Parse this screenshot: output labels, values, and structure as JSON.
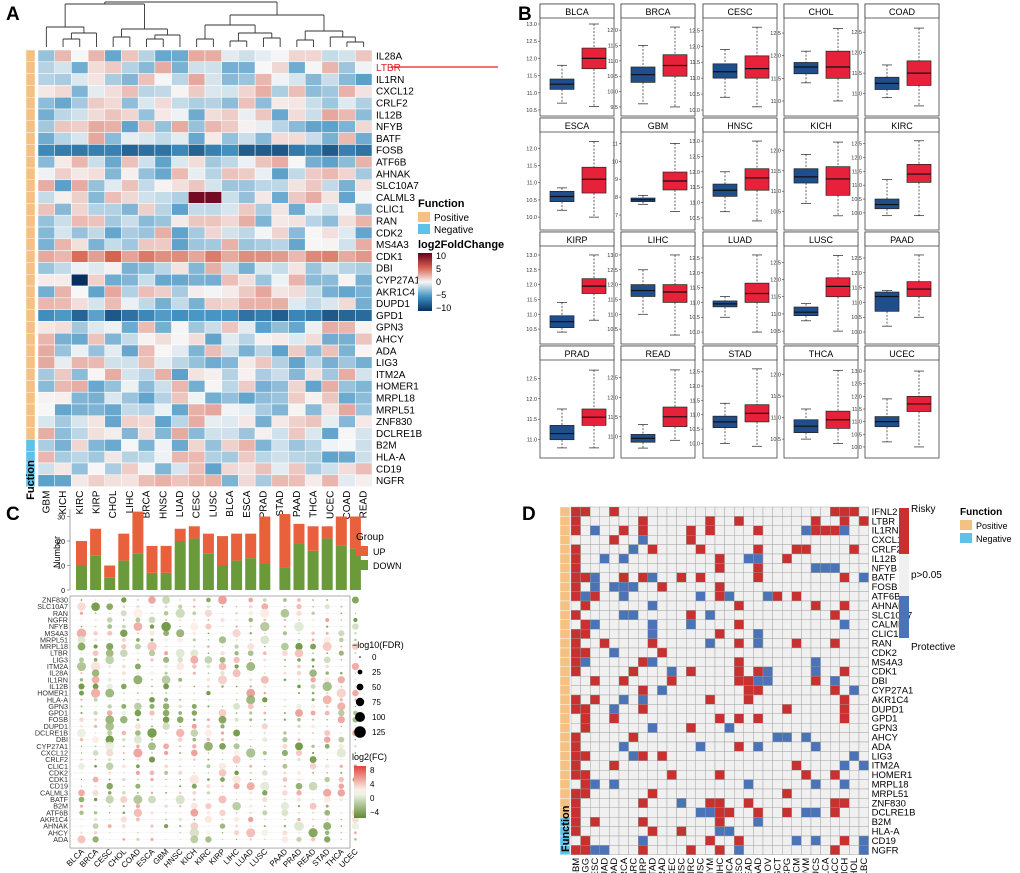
{
  "panels": {
    "a": {
      "label": "A",
      "genes": [
        "IL28A",
        "LTBR",
        "IL1RN",
        "CXCL12",
        "CRLF2",
        "IL12B",
        "NFYB",
        "BATF",
        "FOSB",
        "ATF6B",
        "AHNAK",
        "SLC10A7",
        "CALML3",
        "CLIC1",
        "RAN",
        "CDK2",
        "MS4A3",
        "CDK1",
        "DBI",
        "CYP27A1",
        "AKR1C4",
        "DUPD1",
        "GPD1",
        "GPN3",
        "AHCY",
        "ADA",
        "LIG3",
        "ITM2A",
        "HOMER1",
        "MRPL18",
        "MRPL51",
        "ZNF830",
        "DCLRE1B",
        "B2M",
        "HLA-A",
        "CD19",
        "NGFR"
      ],
      "highlight_gene": "LTBR",
      "function_negative_genes": [
        "B2M",
        "HLA-A",
        "CD19",
        "NGFR"
      ],
      "cancers": [
        "GBM",
        "KICH",
        "KIRC",
        "KIRP",
        "CHOL",
        "LIHC",
        "BRCA",
        "HNSC",
        "LUAD",
        "CESC",
        "LUSC",
        "BLCA",
        "ESCA",
        "PRAD",
        "STAD",
        "PAAD",
        "THCA",
        "UCEC",
        "COAD",
        "READ"
      ],
      "function_axis_label": "Fuction",
      "legend": {
        "function_title": "Function",
        "positive": "Positive",
        "negative": "Negative",
        "fc_title": "log2FoldChange",
        "fc_ticks": [
          "10",
          "5",
          "0",
          "−5",
          "−10"
        ]
      }
    },
    "b": {
      "label": "B",
      "boxplots": [
        {
          "cancer": "BLCA",
          "yticks": [
            "10.5",
            "11.0",
            "11.5",
            "12.0",
            "12.5",
            "13.0"
          ],
          "ymin": 10.5,
          "ymax": 13.0,
          "normal": {
            "min": 10.7,
            "q1": 11.1,
            "med": 11.25,
            "q3": 11.4,
            "max": 11.8
          },
          "tumor": {
            "min": 10.6,
            "q1": 11.7,
            "med": 12.0,
            "q3": 12.3,
            "max": 13.0
          }
        },
        {
          "cancer": "BRCA",
          "yticks": [
            "9.5",
            "10.0",
            "10.5",
            "11.0",
            "11.5",
            "12.0"
          ],
          "ymin": 9.4,
          "ymax": 12.2,
          "normal": {
            "min": 9.6,
            "q1": 10.3,
            "med": 10.55,
            "q3": 10.8,
            "max": 11.5
          },
          "tumor": {
            "min": 9.5,
            "q1": 10.5,
            "med": 10.85,
            "q3": 11.2,
            "max": 12.1
          }
        },
        {
          "cancer": "CESC",
          "yticks": [
            "10.0",
            "10.5",
            "11.0",
            "11.5",
            "12.0",
            "12.5"
          ],
          "ymin": 10.0,
          "ymax": 12.7,
          "normal": {
            "min": 10.4,
            "q1": 11.0,
            "med": 11.2,
            "q3": 11.45,
            "max": 11.9
          },
          "tumor": {
            "min": 10.1,
            "q1": 11.0,
            "med": 11.3,
            "q3": 11.7,
            "max": 12.6
          }
        },
        {
          "cancer": "CHOL",
          "yticks": [
            "11.0",
            "11.5",
            "12.0",
            "12.5"
          ],
          "ymin": 10.8,
          "ymax": 12.7,
          "normal": {
            "min": 11.4,
            "q1": 11.6,
            "med": 11.75,
            "q3": 11.85,
            "max": 12.1
          },
          "tumor": {
            "min": 11.0,
            "q1": 11.5,
            "med": 11.75,
            "q3": 12.1,
            "max": 12.6
          }
        },
        {
          "cancer": "COAD",
          "yticks": [
            "11.0",
            "11.5",
            "12.0",
            "12.5"
          ],
          "ymin": 10.6,
          "ymax": 12.7,
          "normal": {
            "min": 10.9,
            "q1": 11.1,
            "med": 11.25,
            "q3": 11.4,
            "max": 11.7
          },
          "tumor": {
            "min": 10.7,
            "q1": 11.2,
            "med": 11.5,
            "q3": 11.8,
            "max": 12.6
          }
        },
        {
          "cancer": "ESCA",
          "yticks": [
            "10.0",
            "10.5",
            "11.0",
            "11.5",
            "12.0"
          ],
          "ymin": 9.8,
          "ymax": 12.3,
          "normal": {
            "min": 10.2,
            "q1": 10.45,
            "med": 10.6,
            "q3": 10.75,
            "max": 10.85
          },
          "tumor": {
            "min": 10.0,
            "q1": 10.7,
            "med": 11.1,
            "q3": 11.45,
            "max": 12.2
          }
        },
        {
          "cancer": "GBM",
          "yticks": [
            "7",
            "8",
            "9",
            "10",
            "11"
          ],
          "ymin": 6.5,
          "ymax": 11.3,
          "normal": {
            "min": 7.6,
            "q1": 7.75,
            "med": 7.85,
            "q3": 7.95,
            "max": 8.1
          },
          "tumor": {
            "min": 7.2,
            "q1": 8.4,
            "med": 8.9,
            "q3": 9.4,
            "max": 11.0
          }
        },
        {
          "cancer": "HNSC",
          "yticks": [
            "10.5",
            "11.0",
            "11.5",
            "12.0",
            "12.5",
            "13.0"
          ],
          "ymin": 10.3,
          "ymax": 13.1,
          "normal": {
            "min": 10.7,
            "q1": 11.2,
            "med": 11.4,
            "q3": 11.6,
            "max": 12.0
          },
          "tumor": {
            "min": 10.4,
            "q1": 11.4,
            "med": 11.8,
            "q3": 12.1,
            "max": 13.0
          }
        },
        {
          "cancer": "KICH",
          "yticks": [
            "10.5",
            "11.0",
            "11.5",
            "12.0"
          ],
          "ymin": 10.2,
          "ymax": 12.3,
          "normal": {
            "min": 10.7,
            "q1": 11.2,
            "med": 11.35,
            "q3": 11.55,
            "max": 11.9
          },
          "tumor": {
            "min": 10.4,
            "q1": 10.9,
            "med": 11.3,
            "q3": 11.6,
            "max": 12.2
          }
        },
        {
          "cancer": "KIRC",
          "yticks": [
            "10.0",
            "10.5",
            "11.0",
            "11.5",
            "12.0",
            "12.5"
          ],
          "ymin": 9.6,
          "ymax": 12.7,
          "normal": {
            "min": 9.9,
            "q1": 10.15,
            "med": 10.3,
            "q3": 10.5,
            "max": 11.2
          },
          "tumor": {
            "min": 9.9,
            "q1": 11.1,
            "med": 11.4,
            "q3": 11.75,
            "max": 12.6
          }
        },
        {
          "cancer": "KIRP",
          "yticks": [
            "10.5",
            "11.0",
            "11.5",
            "12.0",
            "12.5",
            "13.0"
          ],
          "ymin": 10.2,
          "ymax": 13.1,
          "normal": {
            "min": 10.4,
            "q1": 10.55,
            "med": 10.75,
            "q3": 10.95,
            "max": 11.4
          },
          "tumor": {
            "min": 10.8,
            "q1": 11.7,
            "med": 11.95,
            "q3": 12.2,
            "max": 13.0
          }
        },
        {
          "cancer": "LIHC",
          "yticks": [
            "10.5",
            "11.0",
            "11.5",
            "12.0",
            "12.5",
            "13.0"
          ],
          "ymin": 10.2,
          "ymax": 13.1,
          "normal": {
            "min": 11.0,
            "q1": 11.6,
            "med": 11.8,
            "q3": 12.0,
            "max": 12.5
          },
          "tumor": {
            "min": 10.3,
            "q1": 11.4,
            "med": 11.75,
            "q3": 12.0,
            "max": 13.0
          }
        },
        {
          "cancer": "LUAD",
          "yticks": [
            "10.0",
            "10.5",
            "11.0",
            "11.5",
            "12.0",
            "12.5"
          ],
          "ymin": 9.8,
          "ymax": 12.7,
          "normal": {
            "min": 10.5,
            "q1": 10.85,
            "med": 10.95,
            "q3": 11.05,
            "max": 11.2
          },
          "tumor": {
            "min": 10.0,
            "q1": 11.0,
            "med": 11.3,
            "q3": 11.65,
            "max": 12.6
          }
        },
        {
          "cancer": "LUSC",
          "yticks": [
            "10.5",
            "11.0",
            "11.5",
            "12.0",
            "12.5"
          ],
          "ymin": 10.3,
          "ymax": 12.8,
          "normal": {
            "min": 10.8,
            "q1": 10.95,
            "med": 11.05,
            "q3": 11.2,
            "max": 11.3
          },
          "tumor": {
            "min": 10.5,
            "q1": 11.5,
            "med": 11.8,
            "q3": 12.05,
            "max": 12.7
          }
        },
        {
          "cancer": "PAAD",
          "yticks": [
            "10.0",
            "10.5",
            "11.0",
            "11.5",
            "12.0",
            "12.5"
          ],
          "ymin": 9.8,
          "ymax": 12.7,
          "normal": {
            "min": 10.2,
            "q1": 10.7,
            "med": 11.2,
            "q3": 11.35,
            "max": 11.4
          },
          "tumor": {
            "min": 10.5,
            "q1": 11.2,
            "med": 11.45,
            "q3": 11.7,
            "max": 12.6
          }
        },
        {
          "cancer": "PRAD",
          "yticks": [
            "11.0",
            "11.5",
            "12.0",
            "12.5"
          ],
          "ymin": 10.7,
          "ymax": 12.8,
          "normal": {
            "min": 10.8,
            "q1": 11.0,
            "med": 11.15,
            "q3": 11.35,
            "max": 11.75
          },
          "tumor": {
            "min": 10.8,
            "q1": 11.35,
            "med": 11.55,
            "q3": 11.75,
            "max": 12.7
          }
        },
        {
          "cancer": "READ",
          "yticks": [
            "11.0",
            "11.5",
            "12.0",
            "12.5"
          ],
          "ymin": 10.6,
          "ymax": 12.8,
          "normal": {
            "min": 10.7,
            "q1": 10.85,
            "med": 10.95,
            "q3": 11.05,
            "max": 11.3
          },
          "tumor": {
            "min": 10.9,
            "q1": 11.25,
            "med": 11.5,
            "q3": 11.75,
            "max": 12.7
          }
        },
        {
          "cancer": "STAD",
          "yticks": [
            "10.0",
            "10.5",
            "11.0",
            "11.5",
            "12.0",
            "12.5"
          ],
          "ymin": 9.7,
          "ymax": 12.7,
          "normal": {
            "min": 10.0,
            "q1": 10.55,
            "med": 10.75,
            "q3": 10.95,
            "max": 11.4
          },
          "tumor": {
            "min": 9.9,
            "q1": 10.75,
            "med": 11.05,
            "q3": 11.35,
            "max": 12.6
          }
        },
        {
          "cancer": "THCA",
          "yticks": [
            "10.5",
            "11.0",
            "11.5",
            "12.0"
          ],
          "ymin": 10.2,
          "ymax": 12.2,
          "normal": {
            "min": 10.5,
            "q1": 10.65,
            "med": 10.8,
            "q3": 10.95,
            "max": 11.2
          },
          "tumor": {
            "min": 10.4,
            "q1": 10.75,
            "med": 10.95,
            "q3": 11.15,
            "max": 12.1
          }
        },
        {
          "cancer": "UCEC",
          "yticks": [
            "10.0",
            "10.5",
            "11.0",
            "11.5",
            "12.0",
            "12.5",
            "13.0"
          ],
          "ymin": 9.8,
          "ymax": 13.2,
          "normal": {
            "min": 10.2,
            "q1": 10.8,
            "med": 11.0,
            "q3": 11.2,
            "max": 11.9
          },
          "tumor": {
            "min": 10.0,
            "q1": 11.4,
            "med": 11.7,
            "q3": 12.0,
            "max": 13.0
          }
        }
      ]
    },
    "c": {
      "label": "C",
      "cancers": [
        "BLCA",
        "BRCA",
        "CESC",
        "CHOL",
        "COAD",
        "ESCA",
        "GBM",
        "HNSC",
        "KICH",
        "KIRC",
        "KIRP",
        "LIHC",
        "LUAD",
        "LUSC",
        "PAAD",
        "PRAD",
        "READ",
        "STAD",
        "THCA",
        "UCEC"
      ],
      "up": [
        10,
        11,
        5,
        11,
        17,
        11,
        11,
        5,
        5,
        8,
        12,
        11,
        10,
        19,
        22,
        8,
        10,
        5,
        12,
        13
      ],
      "down": [
        10,
        14,
        5,
        12,
        15,
        7,
        7,
        20,
        21,
        15,
        10,
        12,
        13,
        11,
        9,
        19,
        16,
        21,
        18,
        17
      ],
      "genes": [
        "ZNF830",
        "SLC10A7",
        "RAN",
        "NGFR",
        "NFYB",
        "MS4A3",
        "MRPL51",
        "MRPL18",
        "LTBR",
        "LIG3",
        "ITM2A",
        "IL28A",
        "IL1RN",
        "IL12B",
        "HOMER1",
        "HLA-A",
        "GPN3",
        "GPD1",
        "FOSB",
        "DUPD1",
        "DCLRE1B",
        "DBI",
        "CYP27A1",
        "CXCL12",
        "CRLF2",
        "CLIC1",
        "CDK2",
        "CDK1",
        "CD19",
        "CALML3",
        "BATF",
        "B2M",
        "ATF6B",
        "AKR1C4",
        "AHNAK",
        "AHCY",
        "ADA"
      ],
      "y_axis_label": "Number",
      "y_ticks": [
        "0",
        "10",
        "20",
        "30"
      ],
      "legend": {
        "group_title": "Group",
        "up": "UP",
        "down": "DOWN",
        "size_title": "−log10(FDR)",
        "size_values": [
          "0",
          "25",
          "50",
          "75",
          "100",
          "125"
        ],
        "fc_title": "log2(FC)",
        "fc_ticks": [
          "8",
          "4",
          "0",
          "−4"
        ]
      }
    },
    "d": {
      "label": "D",
      "genes": [
        "IFNL2",
        "LTBR",
        "IL1RN",
        "CXCL12",
        "CRLF2",
        "IL12B",
        "NFYB",
        "BATF",
        "FOSB",
        "ATF6B",
        "AHNAK",
        "SLC10A7",
        "CALML3",
        "CLIC1",
        "RAN",
        "CDK2",
        "MS4A3",
        "CDK1",
        "DBI",
        "CYP27A1",
        "AKR1C4",
        "DUPD1",
        "GPD1",
        "GPN3",
        "AHCY",
        "ADA",
        "LIG3",
        "ITM2A",
        "HOMER1",
        "MRPL18",
        "MRPL51",
        "ZNF830",
        "DCLRE1B",
        "B2M",
        "HLA-A",
        "CD19",
        "NGFR"
      ],
      "function_negative_genes": [
        "B2M",
        "HLA-A",
        "CD19",
        "NGFR"
      ],
      "cancers": [
        "GBM",
        "LGG",
        "CESC",
        "LUAD",
        "COAD",
        "BRCA",
        "SARC",
        "KIRP",
        "STAD",
        "PRAD",
        "UCEC",
        "HNSC",
        "KIRC",
        "LUSC",
        "THYM",
        "LIHC",
        "THCA",
        "MESO",
        "READ",
        "PAAD",
        "OV",
        "TGCT",
        "PCPG",
        "SKCM",
        "UVM",
        "UCS",
        "BLCA",
        "ACC",
        "KICH",
        "CHOL",
        "DLBC"
      ],
      "function_axis_label": "Function",
      "legend": {
        "risky": "Risky",
        "ns": "p>0.05",
        "protective": "Protective",
        "function_title": "Function",
        "positive": "Positive",
        "negative": "Negative"
      }
    }
  },
  "colors": {
    "positive": "#f4c183",
    "negative": "#5ec1ea",
    "up": "#e8603c",
    "down": "#6a9a3a",
    "risky": "#c8312f",
    "protective": "#4a73b8",
    "ns": "#f0f0f0",
    "normal_box": "#1f4e8c",
    "tumor_box": "#e8213a"
  }
}
